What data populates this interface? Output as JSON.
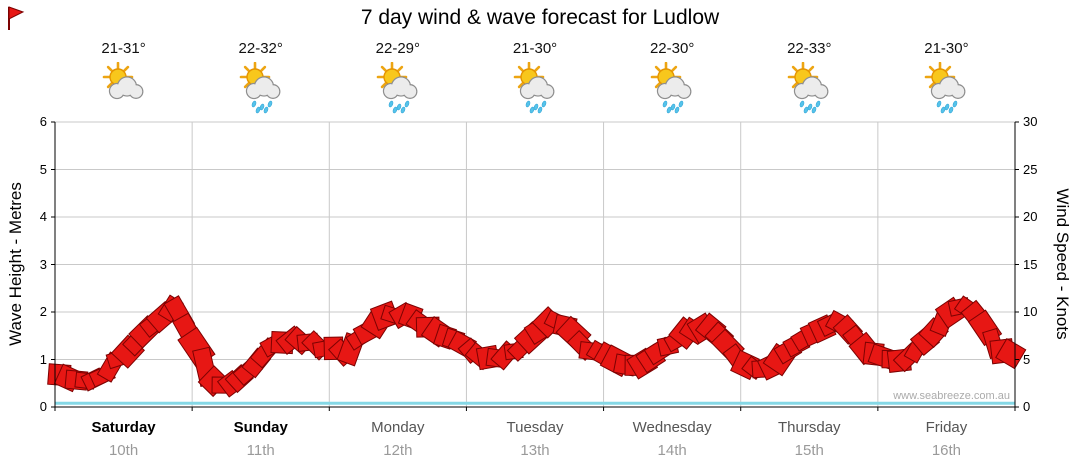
{
  "title": "7 day wind & wave forecast for Ludlow",
  "watermark": "www.seabreeze.com.au",
  "axes": {
    "left_label": "Wave Height - Metres",
    "right_label": "Wind Speed - Knots"
  },
  "days": [
    {
      "name": "Saturday",
      "date": "10th",
      "temp": "21-31°",
      "icon": "sun-cloud",
      "bold": true
    },
    {
      "name": "Sunday",
      "date": "11th",
      "temp": "22-32°",
      "icon": "sun-cloud-rain",
      "bold": true
    },
    {
      "name": "Monday",
      "date": "12th",
      "temp": "22-29°",
      "icon": "sun-cloud-rain",
      "bold": false
    },
    {
      "name": "Tuesday",
      "date": "13th",
      "temp": "21-30°",
      "icon": "sun-cloud-rain",
      "bold": false
    },
    {
      "name": "Wednesday",
      "date": "14th",
      "temp": "22-30°",
      "icon": "sun-cloud-rain",
      "bold": false
    },
    {
      "name": "Thursday",
      "date": "15th",
      "temp": "22-33°",
      "icon": "sun-cloud-rain",
      "bold": false
    },
    {
      "name": "Friday",
      "date": "16th",
      "temp": "21-30°",
      "icon": "sun-cloud-rain",
      "bold": false
    }
  ],
  "chart_data": {
    "type": "area",
    "title": "7 day wind & wave forecast for Ludlow",
    "x": {
      "unit": "hours",
      "range": [
        0,
        168
      ],
      "step_hours": 3,
      "day_labels": [
        "Saturday",
        "Sunday",
        "Monday",
        "Tuesday",
        "Wednesday",
        "Thursday",
        "Friday"
      ],
      "day_dates": [
        "10th",
        "11th",
        "12th",
        "13th",
        "14th",
        "15th",
        "16th"
      ]
    },
    "y_left": {
      "label": "Wave Height - Metres",
      "range": [
        0,
        6
      ],
      "ticks": [
        0,
        1,
        2,
        3,
        4,
        5,
        6
      ]
    },
    "y_right": {
      "label": "Wind Speed - Knots",
      "range": [
        0,
        30
      ],
      "ticks": [
        0,
        5,
        10,
        15,
        20,
        25,
        30
      ]
    },
    "grid_color": "#c9c9c9",
    "series": [
      {
        "name": "Wind Speed",
        "axis": "right",
        "unit": "knots",
        "style": "wind-flag-band",
        "color": "#e71714",
        "edge_color": "#7c0202",
        "values": [
          3.8,
          3.2,
          2.8,
          3.6,
          5.5,
          7.5,
          9.2,
          11.2,
          7.0,
          3.2,
          2.0,
          3.2,
          5.2,
          6.8,
          7.2,
          6.6,
          6.2,
          5.6,
          7.6,
          9.2,
          9.8,
          9.4,
          8.2,
          7.0,
          6.2,
          5.4,
          5.0,
          6.2,
          7.6,
          9.4,
          8.4,
          6.2,
          5.6,
          4.6,
          4.2,
          5.2,
          6.6,
          8.0,
          8.4,
          7.0,
          4.6,
          3.6,
          4.6,
          6.2,
          7.6,
          8.8,
          8.4,
          6.6,
          5.2,
          4.6,
          5.6,
          7.6,
          9.6,
          11.0,
          9.0,
          6.2,
          5.6
        ]
      },
      {
        "name": "Wave Height",
        "axis": "left",
        "unit": "metres",
        "style": "line",
        "color": "#85d8e6",
        "x_hours": [
          0,
          168
        ],
        "values": [
          0.08,
          0.08
        ]
      }
    ]
  }
}
